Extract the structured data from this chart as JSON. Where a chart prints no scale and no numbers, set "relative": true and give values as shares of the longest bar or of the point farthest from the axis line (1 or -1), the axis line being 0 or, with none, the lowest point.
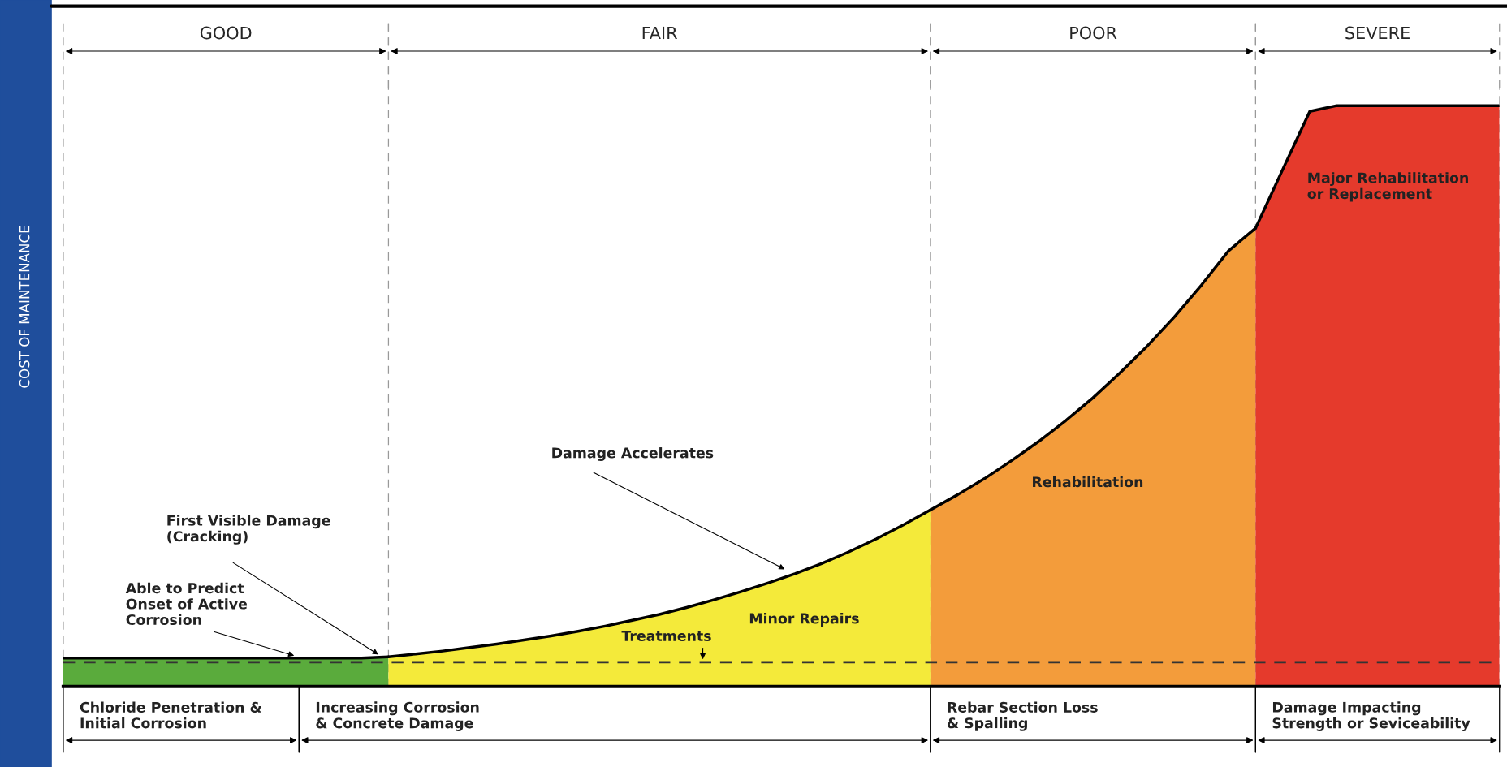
{
  "chart_data": {
    "type": "area",
    "relative": true,
    "ylabel": "COST OF MAINTENANCE",
    "categories": [
      null,
      null,
      null,
      null,
      null,
      null,
      null,
      null,
      null,
      null,
      null,
      null,
      null,
      null,
      null,
      null,
      null,
      null,
      null,
      null,
      null,
      null,
      null,
      null,
      null,
      null,
      null,
      null,
      null,
      null,
      null,
      null,
      null,
      null,
      null,
      null,
      null,
      null,
      null,
      null,
      null,
      null,
      null,
      null,
      null,
      null,
      null,
      null,
      null,
      null,
      null,
      null,
      null,
      null
    ],
    "series": [
      {
        "color": "#5aab3c",
        "values": [
          0.049,
          0.049,
          0.049,
          0.049,
          0.049,
          0.049,
          0.049,
          0.049,
          0.049,
          0.049,
          0.049,
          0.049,
          0.051,
          null,
          null,
          null,
          null,
          null,
          null,
          null,
          null,
          null,
          null,
          null,
          null,
          null,
          null,
          null,
          null,
          null,
          null,
          null,
          null,
          null,
          null,
          null,
          null,
          null,
          null,
          null,
          null,
          null,
          null,
          null,
          null,
          null,
          null,
          null,
          null,
          null,
          null,
          null,
          null,
          null
        ]
      },
      {
        "color": "#f4ea3a",
        "values": [
          null,
          null,
          null,
          null,
          null,
          null,
          null,
          null,
          null,
          null,
          null,
          null,
          0.051,
          0.056,
          0.061,
          0.067,
          0.073,
          0.08,
          0.087,
          0.095,
          0.104,
          0.114,
          0.124,
          0.136,
          0.149,
          0.163,
          0.178,
          0.194,
          0.212,
          0.232,
          0.254,
          0.278,
          0.304,
          null,
          null,
          null,
          null,
          null,
          null,
          null,
          null,
          null,
          null,
          null,
          null,
          null,
          null,
          null,
          null,
          null,
          null,
          null,
          null,
          null
        ]
      },
      {
        "color": "#f39c3b",
        "values": [
          null,
          null,
          null,
          null,
          null,
          null,
          null,
          null,
          null,
          null,
          null,
          null,
          null,
          null,
          null,
          null,
          null,
          null,
          null,
          null,
          null,
          null,
          null,
          null,
          null,
          null,
          null,
          null,
          null,
          null,
          null,
          null,
          0.304,
          0.33,
          0.358,
          0.389,
          0.422,
          0.458,
          0.497,
          0.54,
          0.586,
          0.636,
          0.691,
          0.75,
          0.789,
          null,
          null,
          null,
          null,
          null,
          null,
          null,
          null,
          null
        ]
      },
      {
        "color": "#e53a2c",
        "values": [
          null,
          null,
          null,
          null,
          null,
          null,
          null,
          null,
          null,
          null,
          null,
          null,
          null,
          null,
          null,
          null,
          null,
          null,
          null,
          null,
          null,
          null,
          null,
          null,
          null,
          null,
          null,
          null,
          null,
          null,
          null,
          null,
          null,
          null,
          null,
          null,
          null,
          null,
          null,
          null,
          null,
          null,
          null,
          null,
          0.789,
          0.89,
          0.99,
          1,
          1,
          1,
          1,
          1,
          1,
          1
        ]
      }
    ],
    "ref_lines": [
      {
        "axis": "y",
        "value": 0.041,
        "line_style": "dashed",
        "color": "#333333"
      }
    ],
    "annotations": [
      "GOOD",
      "FAIR",
      "POOR",
      "SEVERE",
      "Chloride Penetration &\nInitial Corrosion",
      "Increasing Corrosion\n& Concrete Damage",
      "Rebar Section Loss\n& Spalling",
      "Damage Impacting\nStrength or Seviceability",
      "Able to Predict\nOnset of Active\nCorrosion",
      "First Visible Damage\n(Cracking)",
      "Damage Accelerates",
      "Treatments",
      "Minor Repairs",
      "Rehabilitation",
      "Major Rehabilitation\nor Replacement"
    ],
    "grid": "x",
    "legend": false
  }
}
